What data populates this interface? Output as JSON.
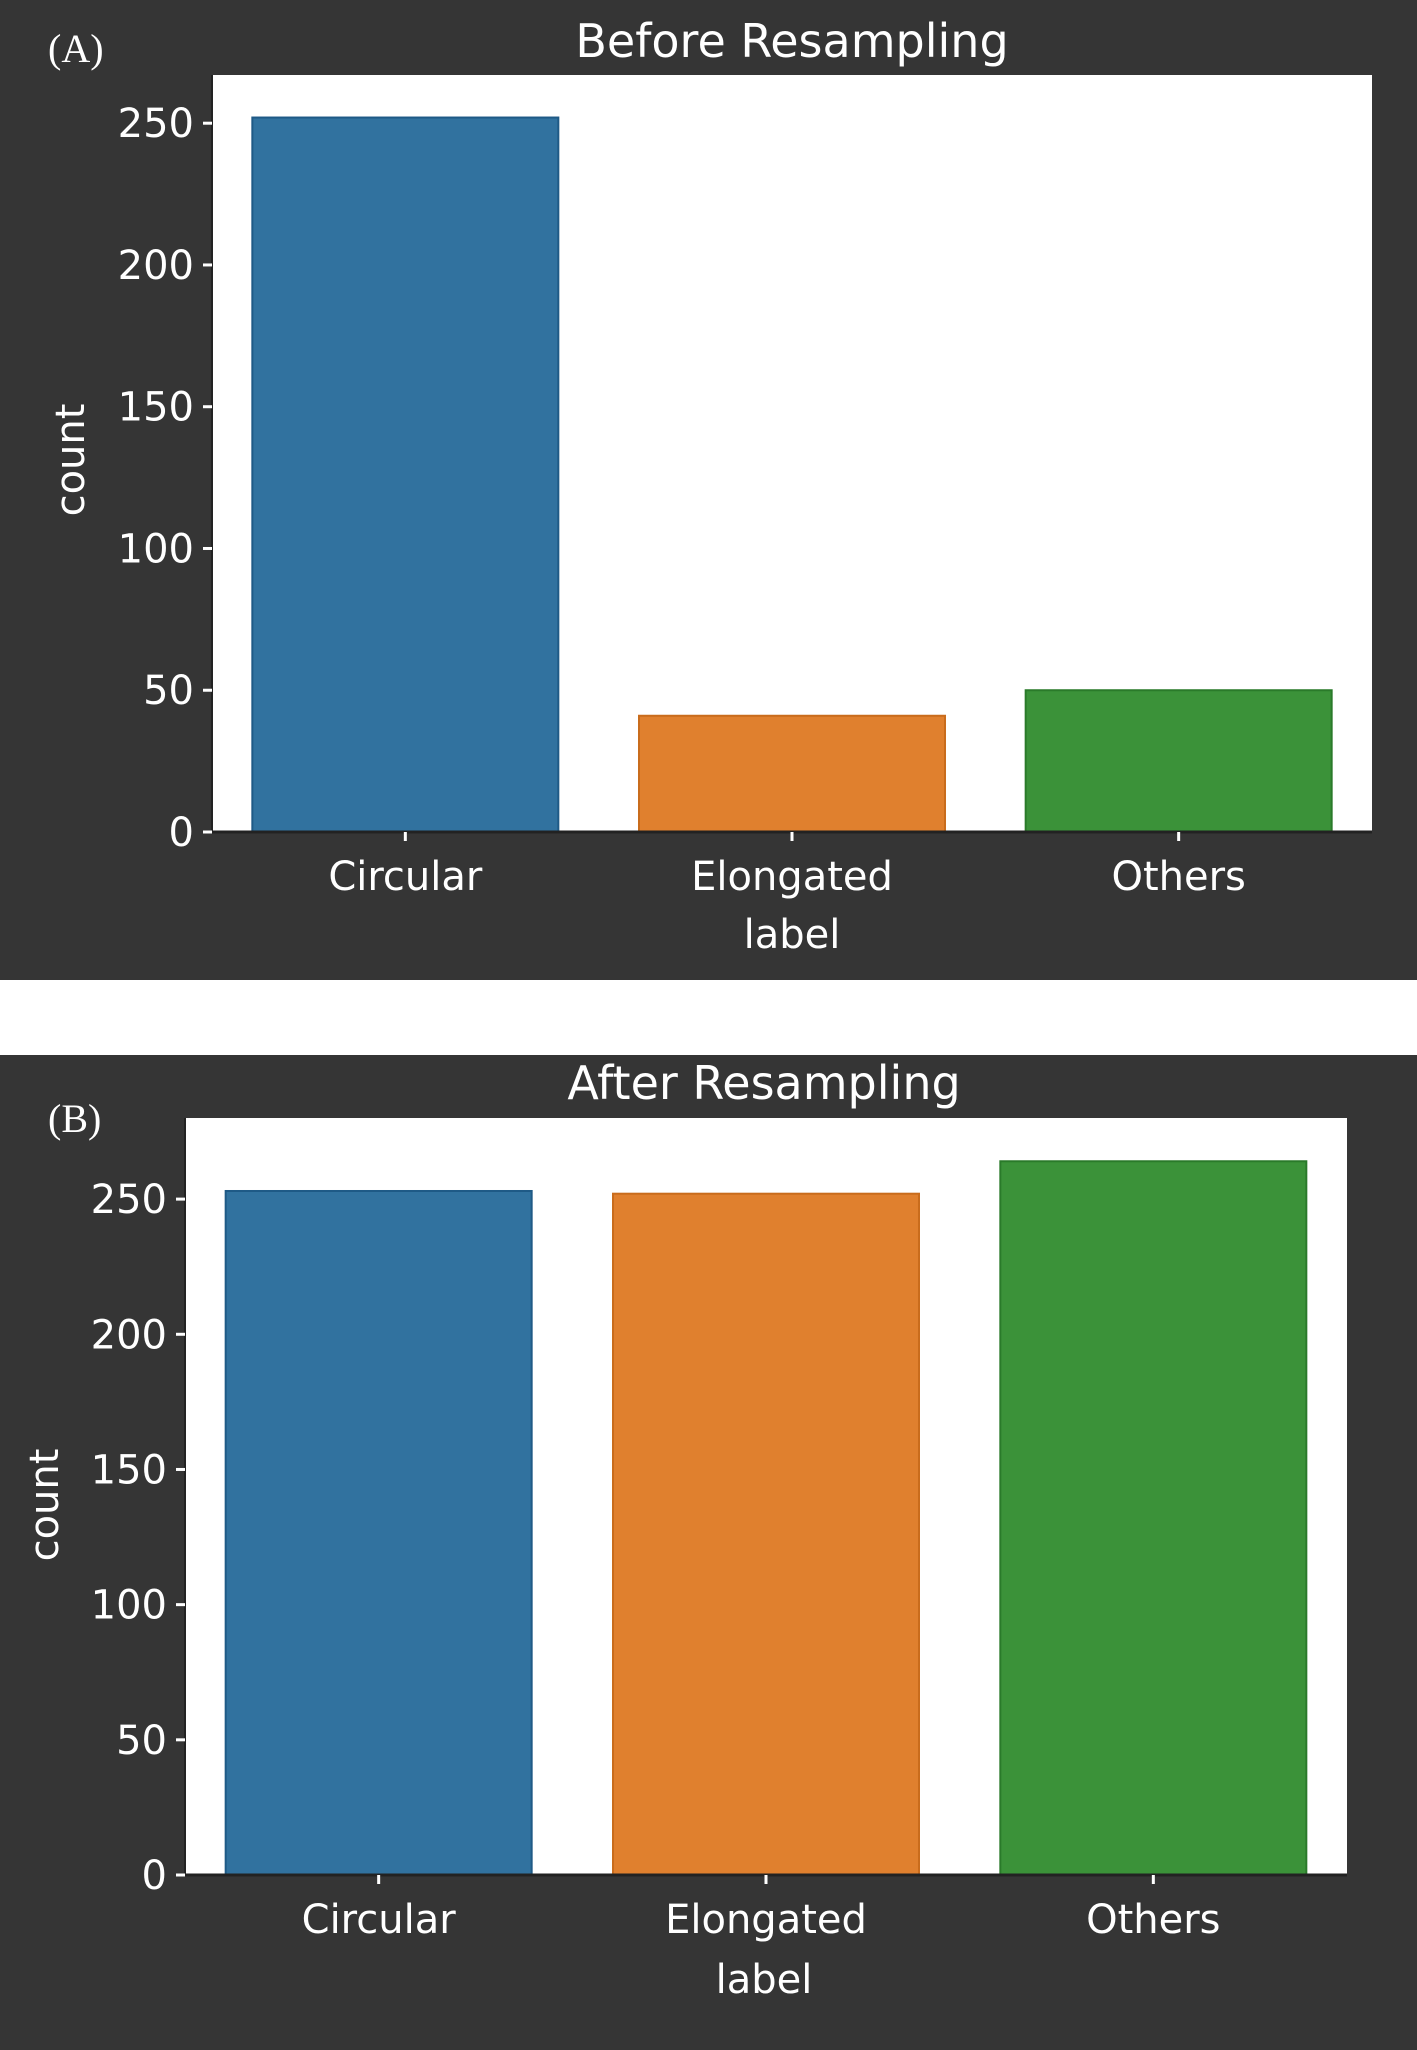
{
  "colors": {
    "background": "#353535",
    "plot_area": "#ffffff",
    "text": "#ffffff",
    "bars": [
      "#31729f",
      "#e0802e",
      "#3b9239"
    ],
    "bar_edges": [
      "#1f5a86",
      "#c96c1c",
      "#2a7a2a"
    ]
  },
  "chart_data": [
    {
      "type": "bar",
      "panel_label": "(A)",
      "title": "Before Resampling",
      "xlabel": "label",
      "ylabel": "count",
      "categories": [
        "Circular",
        "Elongated",
        "Others"
      ],
      "values": [
        252,
        41,
        50
      ],
      "ylim": [
        0,
        267
      ],
      "yticks": [
        "0",
        "50",
        "100",
        "150",
        "200",
        "250"
      ],
      "grid": false
    },
    {
      "type": "bar",
      "panel_label": "(B)",
      "title": "After Resampling",
      "xlabel": "label",
      "ylabel": "count",
      "categories": [
        "Circular",
        "Elongated",
        "Others"
      ],
      "values": [
        253,
        252,
        264
      ],
      "ylim": [
        0,
        280
      ],
      "yticks": [
        "0",
        "50",
        "100",
        "150",
        "200",
        "250"
      ],
      "grid": false
    }
  ]
}
